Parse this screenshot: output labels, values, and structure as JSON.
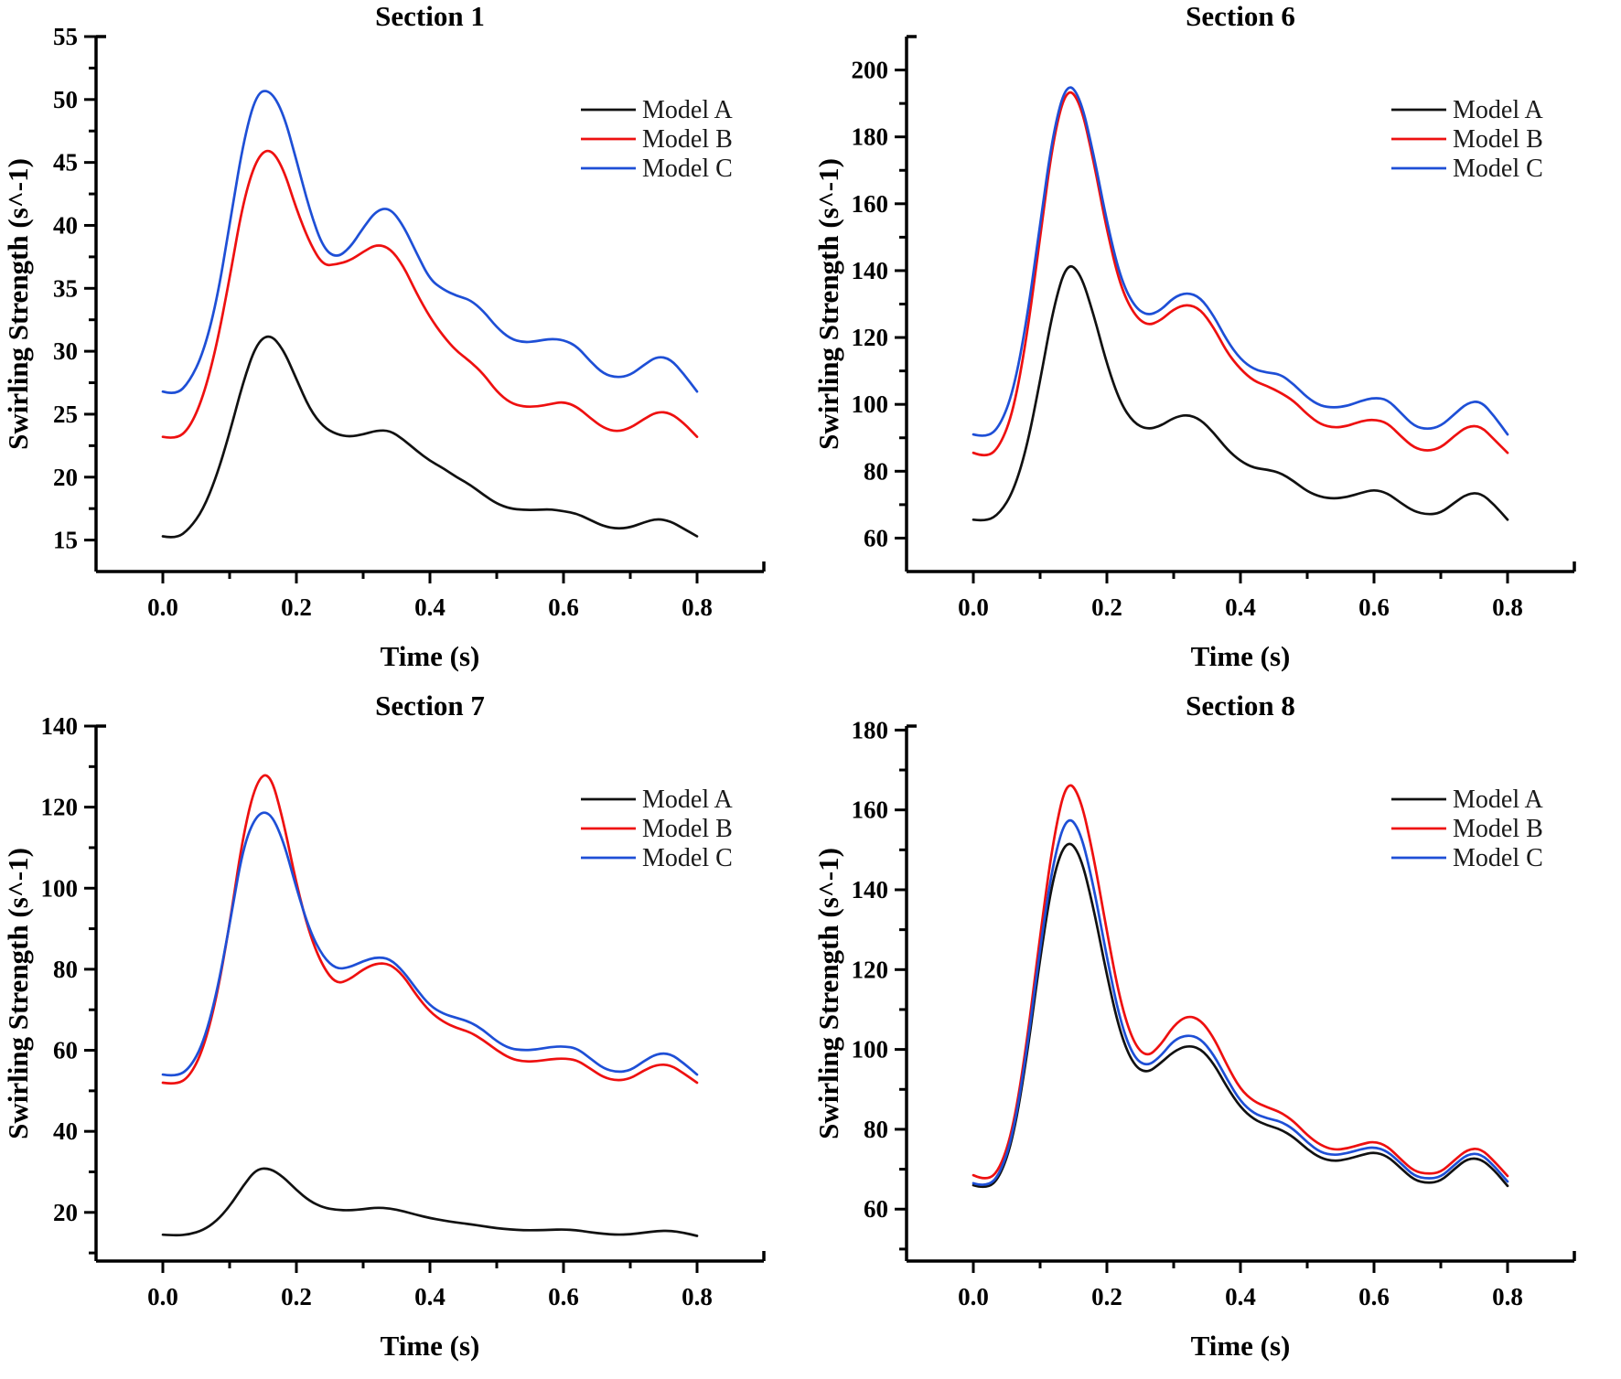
{
  "page": {
    "background": "#ffffff",
    "figure_type": "2x2 grid of line charts"
  },
  "colors": {
    "model_a": "#111111",
    "model_b": "#ee1010",
    "model_c": "#1e4fd6",
    "axis": "#000000"
  },
  "legend_labels": [
    "Model A",
    "Model B",
    "Model C"
  ],
  "chart_data": [
    {
      "type": "line",
      "title": "Section 1",
      "xlabel": "Time (s)",
      "ylabel": "Swirling Strength (s^-1)",
      "xlim": [
        -0.1,
        0.9
      ],
      "ylim": [
        12.5,
        55
      ],
      "xticks": [
        0.0,
        0.2,
        0.4,
        0.6,
        0.8
      ],
      "xtick_labels": [
        "0.0",
        "0.2",
        "0.4",
        "0.6",
        "0.8"
      ],
      "yticks": [
        15,
        20,
        25,
        30,
        35,
        40,
        45,
        50,
        55
      ],
      "ytick_labels": [
        "15",
        "20",
        "25",
        "30",
        "35",
        "40",
        "45",
        "50",
        "55"
      ],
      "yminor": 2.5,
      "grid": false,
      "legend_position": "top-right",
      "x": [
        0.0,
        0.02,
        0.04,
        0.06,
        0.08,
        0.1,
        0.12,
        0.14,
        0.16,
        0.18,
        0.2,
        0.22,
        0.24,
        0.26,
        0.28,
        0.3,
        0.32,
        0.34,
        0.36,
        0.38,
        0.4,
        0.42,
        0.44,
        0.46,
        0.48,
        0.5,
        0.52,
        0.54,
        0.56,
        0.58,
        0.6,
        0.62,
        0.64,
        0.66,
        0.68,
        0.7,
        0.72,
        0.74,
        0.76,
        0.78,
        0.8
      ],
      "series": [
        {
          "name": "Model A",
          "color": "#111111",
          "values": [
            15.3,
            15.1,
            15.9,
            17.4,
            20.0,
            23.5,
            27.5,
            30.6,
            31.4,
            30.2,
            27.8,
            25.4,
            24.0,
            23.4,
            23.2,
            23.4,
            23.7,
            23.7,
            23.0,
            22.1,
            21.3,
            20.7,
            20.0,
            19.4,
            18.6,
            17.9,
            17.5,
            17.4,
            17.4,
            17.45,
            17.3,
            17.1,
            16.6,
            16.1,
            15.9,
            16.0,
            16.4,
            16.7,
            16.5,
            15.9,
            15.3
          ]
        },
        {
          "name": "Model B",
          "color": "#ee1010",
          "values": [
            23.2,
            23.0,
            23.9,
            26.3,
            30.3,
            35.8,
            41.8,
            45.3,
            46.2,
            44.6,
            41.3,
            38.6,
            36.8,
            36.9,
            37.2,
            37.9,
            38.5,
            38.2,
            36.8,
            34.6,
            32.7,
            31.2,
            30.0,
            29.2,
            28.2,
            26.8,
            25.9,
            25.6,
            25.6,
            25.8,
            26.0,
            25.6,
            24.7,
            23.9,
            23.6,
            23.9,
            24.6,
            25.2,
            25.1,
            24.3,
            23.2
          ]
        },
        {
          "name": "Model C",
          "color": "#1e4fd6",
          "values": [
            26.8,
            26.5,
            27.6,
            29.8,
            33.8,
            40.0,
            46.5,
            50.5,
            50.8,
            49.0,
            45.2,
            41.2,
            38.2,
            37.4,
            38.2,
            39.8,
            41.2,
            41.4,
            40.0,
            37.8,
            35.7,
            34.9,
            34.4,
            34.1,
            33.2,
            31.9,
            31.0,
            30.7,
            30.8,
            31.0,
            30.9,
            30.4,
            29.2,
            28.2,
            27.9,
            28.1,
            28.9,
            29.6,
            29.4,
            28.2,
            26.8
          ]
        }
      ]
    },
    {
      "type": "line",
      "title": "Section 6",
      "xlabel": "Time (s)",
      "ylabel": "Swirling Strength (s^-1)",
      "xlim": [
        -0.1,
        0.9
      ],
      "ylim": [
        50,
        210
      ],
      "xticks": [
        0.0,
        0.2,
        0.4,
        0.6,
        0.8
      ],
      "xtick_labels": [
        "0.0",
        "0.2",
        "0.4",
        "0.6",
        "0.8"
      ],
      "yticks": [
        60,
        80,
        100,
        120,
        140,
        160,
        180,
        200
      ],
      "ytick_labels": [
        "60",
        "80",
        "100",
        "120",
        "140",
        "160",
        "180",
        "200"
      ],
      "yminor": 10,
      "grid": false,
      "legend_position": "top-right",
      "x": [
        0.0,
        0.02,
        0.04,
        0.06,
        0.08,
        0.1,
        0.12,
        0.14,
        0.16,
        0.18,
        0.2,
        0.22,
        0.24,
        0.26,
        0.28,
        0.3,
        0.32,
        0.34,
        0.36,
        0.38,
        0.4,
        0.42,
        0.44,
        0.46,
        0.48,
        0.5,
        0.52,
        0.54,
        0.56,
        0.58,
        0.6,
        0.62,
        0.64,
        0.66,
        0.68,
        0.7,
        0.72,
        0.74,
        0.76,
        0.78,
        0.8
      ],
      "series": [
        {
          "name": "Model A",
          "color": "#111111",
          "values": [
            65.5,
            65.0,
            67.5,
            74.0,
            87.0,
            107,
            129,
            142.5,
            139.5,
            127,
            112,
            100.5,
            94.5,
            92.5,
            93.5,
            96,
            97,
            95.5,
            91.5,
            86.5,
            83,
            81,
            80.5,
            79.5,
            77,
            74,
            72.3,
            71.8,
            72.3,
            73.5,
            74.5,
            73.5,
            70.5,
            68,
            67,
            67.5,
            70.5,
            73.3,
            73.5,
            70,
            65.5
          ]
        },
        {
          "name": "Model B",
          "color": "#ee1010",
          "values": [
            85.5,
            84.0,
            87.5,
            98,
            120,
            150,
            180,
            195,
            190.5,
            173,
            152,
            135.5,
            127,
            123.5,
            125,
            128.5,
            130,
            128.5,
            123,
            115.5,
            110.5,
            107,
            105.5,
            103.5,
            101,
            97,
            94,
            93,
            93.5,
            95,
            95.5,
            94.5,
            90.5,
            87,
            86,
            87,
            90.5,
            93.5,
            93.5,
            89.5,
            85.5
          ]
        },
        {
          "name": "Model C",
          "color": "#1e4fd6",
          "values": [
            91,
            90,
            93.5,
            104,
            125,
            154,
            182,
            196.5,
            192,
            175,
            154.5,
            138,
            129.5,
            126.5,
            128,
            132,
            133.5,
            132,
            126.5,
            119,
            113.5,
            110.5,
            109.5,
            109,
            106,
            102,
            99.5,
            99,
            99.5,
            101,
            102,
            101.5,
            97.5,
            93.5,
            92.5,
            93.5,
            97,
            100.5,
            101,
            96.5,
            91
          ]
        }
      ]
    },
    {
      "type": "line",
      "title": "Section 7",
      "xlabel": "Time (s)",
      "ylabel": "Swirling Strength (s^-1)",
      "xlim": [
        -0.1,
        0.9
      ],
      "ylim": [
        8,
        140
      ],
      "xticks": [
        0.0,
        0.2,
        0.4,
        0.6,
        0.8
      ],
      "xtick_labels": [
        "0.0",
        "0.2",
        "0.4",
        "0.6",
        "0.8"
      ],
      "yticks": [
        20,
        40,
        60,
        80,
        100,
        120,
        140
      ],
      "ytick_labels": [
        "20",
        "40",
        "60",
        "80",
        "100",
        "120",
        "140"
      ],
      "yminor": 10,
      "grid": false,
      "legend_position": "top-right",
      "x": [
        0.0,
        0.02,
        0.04,
        0.06,
        0.08,
        0.1,
        0.12,
        0.14,
        0.16,
        0.18,
        0.2,
        0.22,
        0.24,
        0.26,
        0.28,
        0.3,
        0.32,
        0.34,
        0.36,
        0.38,
        0.4,
        0.42,
        0.44,
        0.46,
        0.48,
        0.5,
        0.52,
        0.54,
        0.56,
        0.58,
        0.6,
        0.62,
        0.64,
        0.66,
        0.68,
        0.7,
        0.72,
        0.74,
        0.76,
        0.78,
        0.8
      ],
      "series": [
        {
          "name": "Model A",
          "color": "#111111",
          "values": [
            14.5,
            14.3,
            14.6,
            15.6,
            17.8,
            21.5,
            26.5,
            30.7,
            30.9,
            28.8,
            25.5,
            22.8,
            21.2,
            20.6,
            20.5,
            20.8,
            21.2,
            21.0,
            20.3,
            19.4,
            18.6,
            18.0,
            17.5,
            17.1,
            16.6,
            16.1,
            15.8,
            15.6,
            15.6,
            15.7,
            15.8,
            15.6,
            15.1,
            14.7,
            14.5,
            14.6,
            15.0,
            15.4,
            15.5,
            15.0,
            14.2
          ]
        },
        {
          "name": "Model B",
          "color": "#ee1010",
          "values": [
            52,
            51.5,
            53.5,
            60,
            72.5,
            91,
            113,
            126.5,
            128.8,
            117,
            101,
            88.5,
            80.5,
            76.3,
            77.5,
            80,
            81.5,
            81.3,
            78.5,
            73.5,
            69.5,
            67,
            65.5,
            64.5,
            62.5,
            60,
            58,
            57.2,
            57.3,
            57.8,
            58,
            57.6,
            55.5,
            53.3,
            52.5,
            53,
            55,
            56.5,
            56.4,
            54.3,
            52
          ]
        },
        {
          "name": "Model C",
          "color": "#1e4fd6",
          "values": [
            54,
            53.5,
            55.5,
            61.5,
            73.5,
            91,
            110,
            118.2,
            119.0,
            112,
            100,
            89.5,
            83,
            80,
            80.5,
            82,
            83,
            82.6,
            79.5,
            75,
            71,
            69,
            68,
            67,
            65,
            62.2,
            60.4,
            60,
            60.2,
            60.8,
            61,
            60.5,
            58,
            55.5,
            54.6,
            55,
            57.3,
            59.2,
            59.2,
            56.8,
            54
          ]
        }
      ]
    },
    {
      "type": "line",
      "title": "Section 8",
      "xlabel": "Time (s)",
      "ylabel": "Swirling Strength (s^-1)",
      "xlim": [
        -0.1,
        0.9
      ],
      "ylim": [
        47,
        181
      ],
      "xticks": [
        0.0,
        0.2,
        0.4,
        0.6,
        0.8
      ],
      "xtick_labels": [
        "0.0",
        "0.2",
        "0.4",
        "0.6",
        "0.8"
      ],
      "yticks": [
        60,
        80,
        100,
        120,
        140,
        160,
        180
      ],
      "ytick_labels": [
        "60",
        "80",
        "100",
        "120",
        "140",
        "160",
        "180"
      ],
      "yminor": 10,
      "grid": false,
      "legend_position": "top-right",
      "x": [
        0.0,
        0.02,
        0.04,
        0.06,
        0.08,
        0.1,
        0.12,
        0.14,
        0.16,
        0.18,
        0.2,
        0.22,
        0.24,
        0.26,
        0.28,
        0.3,
        0.32,
        0.34,
        0.36,
        0.38,
        0.4,
        0.42,
        0.44,
        0.46,
        0.48,
        0.5,
        0.52,
        0.54,
        0.56,
        0.58,
        0.6,
        0.62,
        0.64,
        0.66,
        0.68,
        0.7,
        0.72,
        0.74,
        0.76,
        0.78,
        0.8
      ],
      "series": [
        {
          "name": "Model A",
          "color": "#111111",
          "values": [
            66,
            65,
            68,
            78,
            98,
            123,
            144,
            152.8,
            149,
            135.5,
            118.5,
            104,
            96,
            94,
            96.5,
            99.5,
            101,
            100.3,
            96.5,
            90.5,
            85.5,
            82.5,
            81,
            80,
            78,
            75,
            72.8,
            72,
            72.5,
            73.5,
            74.3,
            73.3,
            70.3,
            67.3,
            66.5,
            67,
            70,
            72.7,
            72.6,
            69.8,
            65.8
          ]
        },
        {
          "name": "Model B",
          "color": "#ee1010",
          "values": [
            68.5,
            67,
            70,
            80.5,
            101.5,
            128.5,
            153,
            167.8,
            163.5,
            148.5,
            129.5,
            112,
            101.5,
            98,
            101,
            106,
            108.5,
            107.5,
            103,
            96,
            90,
            87,
            85.5,
            84.3,
            82,
            78.5,
            76,
            74.8,
            75.2,
            76.2,
            77,
            75.8,
            72.5,
            69.5,
            68.8,
            69.2,
            72.2,
            75,
            75.2,
            72,
            68.3
          ]
        },
        {
          "name": "Model C",
          "color": "#1e4fd6",
          "values": [
            66.5,
            65.5,
            68.7,
            79,
            99.5,
            125.5,
            147.5,
            158.8,
            155,
            141,
            123,
            107,
            98,
            95.7,
            98.2,
            102.3,
            103.7,
            102.8,
            98.7,
            92.5,
            87,
            84,
            82.7,
            82,
            80,
            76.7,
            74.2,
            73.5,
            74,
            75,
            75.6,
            74.5,
            71.5,
            68.3,
            67.6,
            68,
            71,
            73.8,
            73.9,
            70.8,
            66.9
          ]
        }
      ]
    }
  ]
}
